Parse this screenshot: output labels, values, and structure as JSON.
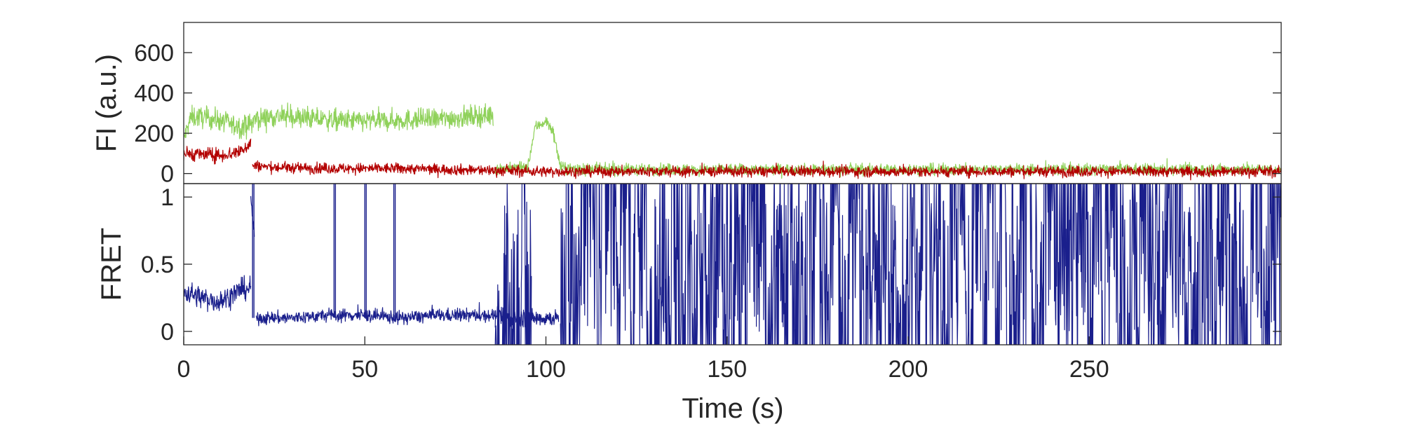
{
  "chart_data": [
    {
      "type": "line",
      "panel": "top",
      "ylabel": "FI (a.u.)",
      "xlim": [
        0,
        303
      ],
      "ylim": [
        -50,
        750
      ],
      "yticks": [
        0,
        200,
        400,
        600
      ],
      "ytick_labels": [
        "0",
        "200",
        "400",
        "600"
      ],
      "grid": false,
      "series": [
        {
          "color": "#8fd15a",
          "role": "donor",
          "segments": [
            {
              "x": [
                0,
                2,
                5,
                10,
                15,
                18,
                20,
                25,
                30,
                40,
                50,
                60,
                70,
                80,
                85.5
              ],
              "y": [
                170,
                280,
                280,
                265,
                230,
                240,
                270,
                285,
                280,
                265,
                260,
                265,
                270,
                285,
                290
              ],
              "noise": 75
            },
            {
              "x": [
                86,
                90,
                95,
                97,
                100,
                102,
                104,
                110,
                150,
                200,
                250,
                303
              ],
              "y": [
                25,
                25,
                30,
                230,
                260,
                210,
                30,
                20,
                20,
                20,
                20,
                20
              ],
              "noise": 40
            }
          ]
        },
        {
          "color": "#b30000",
          "role": "acceptor",
          "segments": [
            {
              "x": [
                0,
                5,
                10,
                15,
                18.5
              ],
              "y": [
                100,
                95,
                90,
                105,
                150
              ],
              "noise": 50
            },
            {
              "x": [
                19,
                25,
                40,
                60,
                86,
                100,
                150,
                200,
                250,
                303
              ],
              "y": [
                40,
                30,
                25,
                25,
                15,
                10,
                10,
                10,
                10,
                10
              ],
              "noise": 38
            }
          ]
        }
      ]
    },
    {
      "type": "line",
      "panel": "bottom",
      "xlabel": "Time (s)",
      "ylabel": "FRET",
      "xlim": [
        0,
        303
      ],
      "ylim": [
        -0.1,
        1.1
      ],
      "yticks": [
        0,
        0.5,
        1
      ],
      "ytick_labels": [
        "0",
        "0.5",
        "1"
      ],
      "xticks": [
        0,
        50,
        100,
        150,
        200,
        250
      ],
      "xtick_labels": [
        "0",
        "50",
        "100",
        "150",
        "200",
        "250"
      ],
      "grid": false,
      "series": [
        {
          "color": "#1a1f8c",
          "role": "fret",
          "segments": [
            {
              "x": [
                0,
                5,
                10,
                15,
                18.5
              ],
              "y": [
                0.3,
                0.25,
                0.22,
                0.3,
                0.33
              ],
              "noise": 0.12,
              "mode": "trace"
            },
            {
              "x": [
                18.5,
                19.5
              ],
              "y": [
                1.0,
                0.7
              ],
              "noise": 0.05,
              "mode": "trace"
            },
            {
              "x": [
                20,
                30,
                40,
                50,
                60,
                70,
                80,
                86
              ],
              "y": [
                0.1,
                0.1,
                0.12,
                0.12,
                0.1,
                0.12,
                0.12,
                0.12
              ],
              "noise": 0.07,
              "mode": "trace"
            },
            {
              "x": [
                86,
                100,
                103.5
              ],
              "y": [
                0.1,
                0.1,
                0.1
              ],
              "noise": 0.09,
              "mode": "trace"
            },
            {
              "x": [
                86,
                96
              ],
              "y": [
                0.45,
                0.45
              ],
              "noise": 0.5,
              "mode": "switching"
            },
            {
              "x": [
                104,
                303
              ],
              "y": [
                0.5,
                0.5
              ],
              "noise": 0.5,
              "mode": "switching"
            }
          ],
          "spikes": [
            19,
            41.5,
            50,
            58
          ]
        }
      ]
    }
  ]
}
